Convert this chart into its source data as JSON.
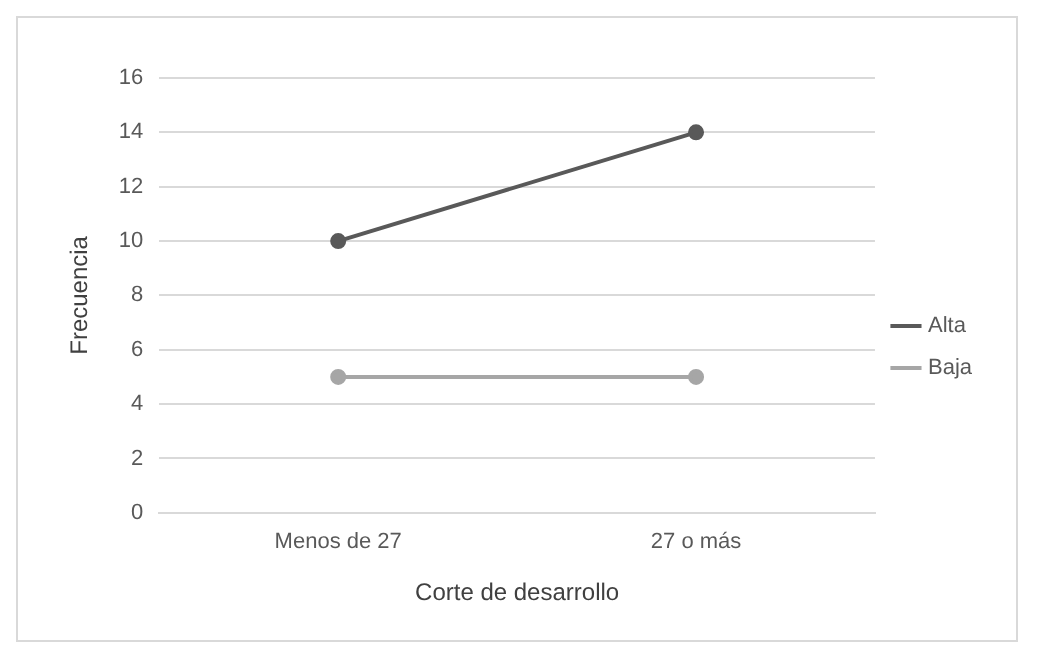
{
  "chart_data": {
    "type": "line",
    "xlabel": "Corte de desarrollo",
    "ylabel": "Frecuencia",
    "categories": [
      "Menos de 27",
      "27 o más"
    ],
    "series": [
      {
        "name": "Alta",
        "color": "#595959",
        "values": [
          10,
          14
        ]
      },
      {
        "name": "Baja",
        "color": "#a6a6a6",
        "values": [
          5,
          5
        ]
      }
    ],
    "ylim": [
      0,
      16
    ],
    "yticks": [
      0,
      2,
      4,
      6,
      8,
      10,
      12,
      14,
      16
    ],
    "grid": "y",
    "legend": "right",
    "marker": "circle",
    "line_style": "solid"
  }
}
